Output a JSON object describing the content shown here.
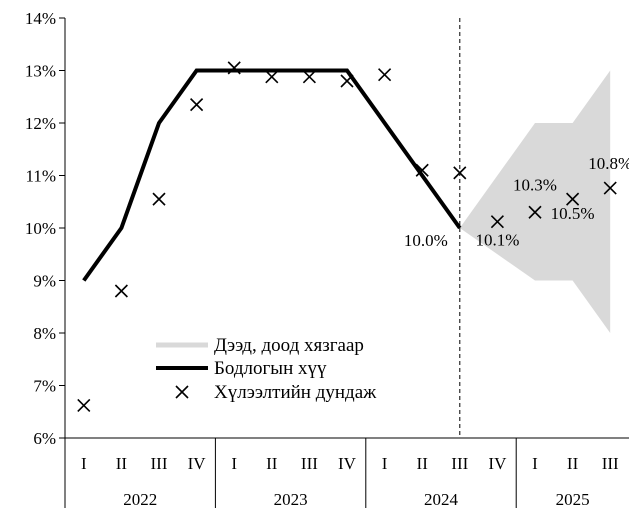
{
  "chart_data": {
    "type": "line",
    "ylim": [
      6,
      14
    ],
    "ytick_step": 1,
    "y_tick_suffix": "%",
    "quarters": [
      "I",
      "II",
      "III",
      "IV",
      "I",
      "II",
      "III",
      "IV",
      "I",
      "II",
      "III",
      "IV",
      "I",
      "II",
      "III"
    ],
    "years": [
      {
        "label": "2022",
        "span": 4
      },
      {
        "label": "2023",
        "span": 4
      },
      {
        "label": "2024",
        "span": 4
      },
      {
        "label": "2025",
        "span": 3
      }
    ],
    "series": [
      {
        "name": "Дээд, доод хязгаар",
        "kind": "band",
        "color": "#d9d9d9",
        "x_index": [
          10,
          12,
          13,
          14
        ],
        "upper": [
          10.0,
          12.0,
          12.0,
          13.0
        ],
        "lower": [
          10.0,
          9.0,
          9.0,
          8.0
        ]
      },
      {
        "name": "Бодлогын хүү",
        "kind": "line",
        "color": "#000000",
        "x_index": [
          0,
          1,
          2,
          3,
          4,
          5,
          6,
          7,
          8,
          9,
          10
        ],
        "values": [
          9.0,
          10.0,
          12.0,
          13.0,
          13.0,
          13.0,
          13.0,
          13.0,
          12.0,
          11.0,
          10.0
        ]
      },
      {
        "name": "Хүлээлтийн дундаж",
        "kind": "marker",
        "color": "#000000",
        "x_index": [
          0,
          1,
          2,
          3,
          4,
          5,
          6,
          7,
          8,
          9,
          10,
          11,
          12,
          13,
          14
        ],
        "values": [
          6.62,
          8.8,
          10.55,
          12.35,
          13.05,
          12.88,
          12.88,
          12.8,
          12.92,
          11.1,
          11.05,
          10.12,
          10.3,
          10.55,
          10.76
        ]
      }
    ],
    "annotations": [
      {
        "text": "10.0%",
        "x_index": 10,
        "value": 10.0
      },
      {
        "text": "10.1%",
        "x_index": 11,
        "value": 10.12
      },
      {
        "text": "10.3%",
        "x_index": 12,
        "value": 10.3
      },
      {
        "text": "10.5%",
        "x_index": 13,
        "value": 10.55
      },
      {
        "text": "10.8%",
        "x_index": 14,
        "value": 10.76
      }
    ],
    "vertical_marker": {
      "x_index": 10,
      "style": "dashed"
    },
    "legend": {
      "placement": "lower-left"
    }
  }
}
